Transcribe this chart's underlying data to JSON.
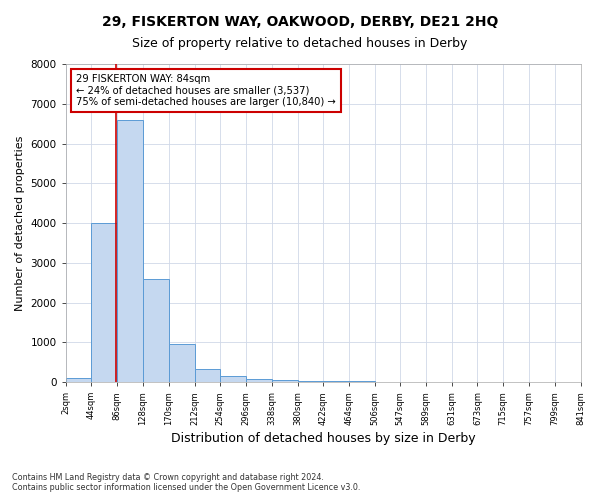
{
  "title": "29, FISKERTON WAY, OAKWOOD, DERBY, DE21 2HQ",
  "subtitle": "Size of property relative to detached houses in Derby",
  "xlabel": "Distribution of detached houses by size in Derby",
  "ylabel": "Number of detached properties",
  "footnote1": "Contains HM Land Registry data © Crown copyright and database right 2024.",
  "footnote2": "Contains public sector information licensed under the Open Government Licence v3.0.",
  "annotation_line1": "29 FISKERTON WAY: 84sqm",
  "annotation_line2": "← 24% of detached houses are smaller (3,537)",
  "annotation_line3": "75% of semi-detached houses are larger (10,840) →",
  "property_size": 84,
  "bar_edges": [
    2,
    44,
    86,
    128,
    170,
    212,
    254,
    296,
    338,
    380,
    422,
    464,
    506,
    547,
    589,
    631,
    673,
    715,
    757,
    799,
    841
  ],
  "bar_heights": [
    100,
    4000,
    6600,
    2600,
    950,
    330,
    150,
    75,
    50,
    35,
    25,
    15,
    10,
    8,
    6,
    5,
    4,
    3,
    2,
    2
  ],
  "bar_color": "#c5d8f0",
  "bar_edge_color": "#5b9bd5",
  "vline_color": "#cc0000",
  "vline_x": 84,
  "annotation_box_color": "#cc0000",
  "ylim": [
    0,
    8000
  ],
  "yticks": [
    0,
    1000,
    2000,
    3000,
    4000,
    5000,
    6000,
    7000,
    8000
  ],
  "background_color": "#ffffff",
  "plot_bg_color": "#ffffff",
  "grid_color": "#d0d8e8",
  "title_fontsize": 10,
  "subtitle_fontsize": 9,
  "xlabel_fontsize": 9,
  "ylabel_fontsize": 8
}
